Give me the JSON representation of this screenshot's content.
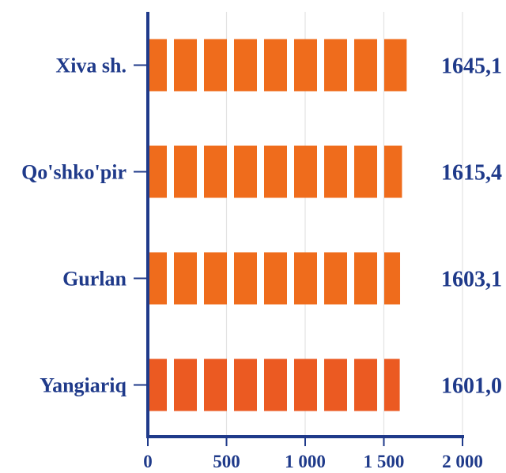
{
  "chart_data": {
    "type": "bar",
    "orientation": "horizontal",
    "categories": [
      "Xiva sh.",
      "Qo'shko'pir",
      "Gurlan",
      "Yangiariq"
    ],
    "values": [
      1645.1,
      1615.4,
      1603.1,
      1601.0
    ],
    "value_labels": [
      "1645,1",
      "1615,4",
      "1603,1",
      "1601,0"
    ],
    "xlim": [
      0,
      2000
    ],
    "x_ticks": [
      0,
      500,
      1000,
      1500,
      2000
    ],
    "x_tick_labels": [
      "0",
      "500",
      "1 000",
      "1 500",
      "2 000"
    ],
    "grid": true,
    "title": "",
    "xlabel": "",
    "ylabel": ""
  },
  "colors": {
    "axis": "#1f3a8a",
    "label": "#1f3a8a",
    "grid": "#e3e3e3",
    "bars": [
      "#ef6c1c",
      "#ef6c1c",
      "#ef6c1c",
      "#eb5a22"
    ]
  }
}
